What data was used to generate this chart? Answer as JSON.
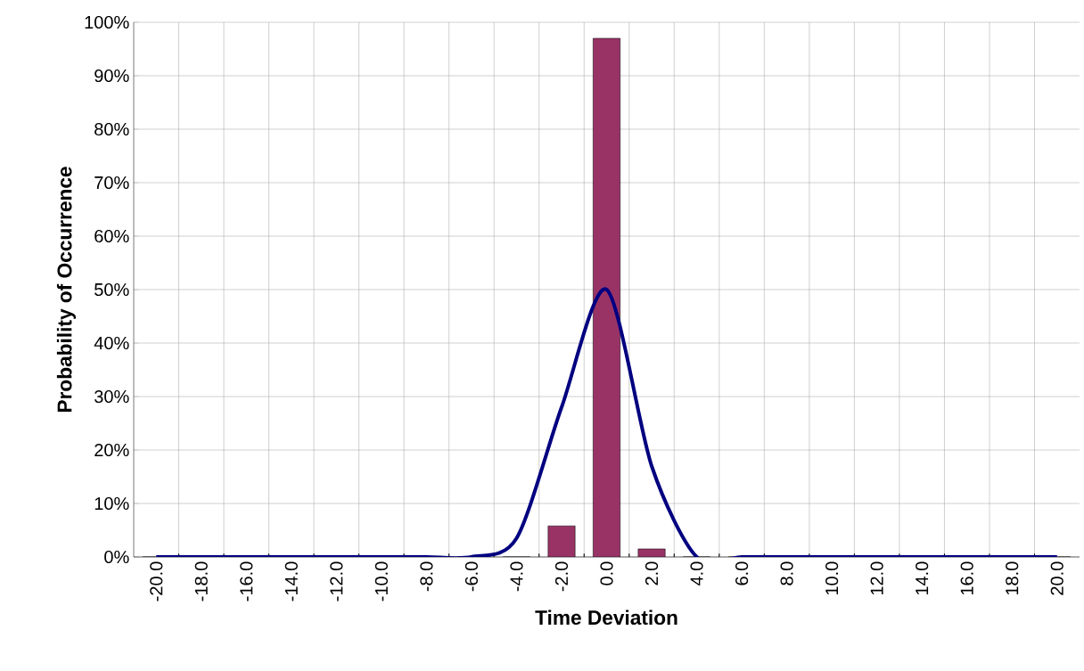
{
  "chart_data": {
    "type": "bar",
    "xlabel": "Time Deviation",
    "ylabel": "Probability of Occurrence",
    "categories": [
      "-20.0",
      "-18.0",
      "-16.0",
      "-14.0",
      "-12.0",
      "-10.0",
      "-8.0",
      "-6.0",
      "-4.0",
      "-2.0",
      "0.0",
      "2.0",
      "4.0",
      "6.0",
      "8.0",
      "10.0",
      "12.0",
      "14.0",
      "16.0",
      "18.0",
      "20.0"
    ],
    "series": [
      {
        "color": "#993366",
        "values": [
          0,
          0,
          0,
          0,
          0,
          0,
          0,
          0,
          0,
          5.8,
          97,
          1.5,
          0,
          0,
          0,
          0,
          0,
          0,
          0,
          0,
          0
        ]
      },
      {
        "type": "line",
        "color": "#000080",
        "values": [
          0,
          0,
          0,
          0,
          0,
          0,
          0,
          0,
          3.5,
          28,
          50,
          17,
          0,
          0,
          0,
          0,
          0,
          0,
          0,
          0,
          0
        ]
      }
    ],
    "ylim": [
      0,
      100
    ],
    "yticks": [
      {
        "value": 0,
        "label": "0%"
      },
      {
        "value": 10,
        "label": "10%"
      },
      {
        "value": 20,
        "label": "20%"
      },
      {
        "value": 30,
        "label": "30%"
      },
      {
        "value": 40,
        "label": "40%"
      },
      {
        "value": 50,
        "label": "50%"
      },
      {
        "value": 60,
        "label": "60%"
      },
      {
        "value": 70,
        "label": "70%"
      },
      {
        "value": 80,
        "label": "80%"
      },
      {
        "value": 90,
        "label": "90%"
      },
      {
        "value": 100,
        "label": "100%"
      }
    ],
    "grid": true,
    "marker": "none"
  }
}
